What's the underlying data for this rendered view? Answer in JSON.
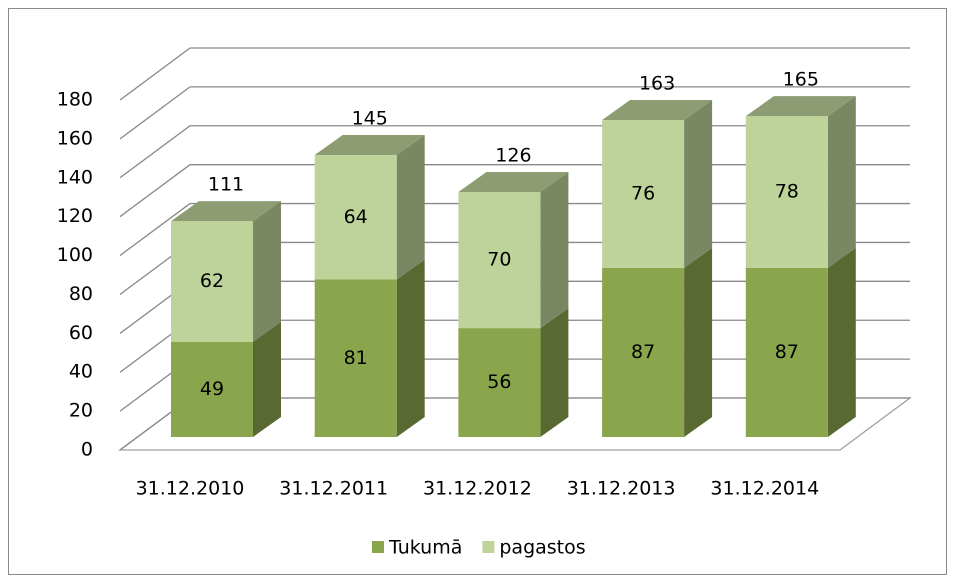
{
  "chart_data": {
    "type": "bar3d_stacked",
    "categories": [
      "31.12.2010",
      "31.12.2011",
      "31.12.2012",
      "31.12.2013",
      "31.12.2014"
    ],
    "series": [
      {
        "name": "Tukumā",
        "color": "#8aa64c",
        "values": [
          49,
          81,
          56,
          87,
          87
        ]
      },
      {
        "name": "pagastos",
        "color": "#bed39a",
        "values": [
          62,
          64,
          70,
          76,
          78
        ]
      }
    ],
    "totals": [
      111,
      145,
      126,
      163,
      165
    ],
    "ylim": [
      0,
      180
    ],
    "yticks": [
      0,
      20,
      40,
      60,
      80,
      100,
      120,
      140,
      160,
      180
    ],
    "grid": true,
    "legend": "bottom"
  }
}
